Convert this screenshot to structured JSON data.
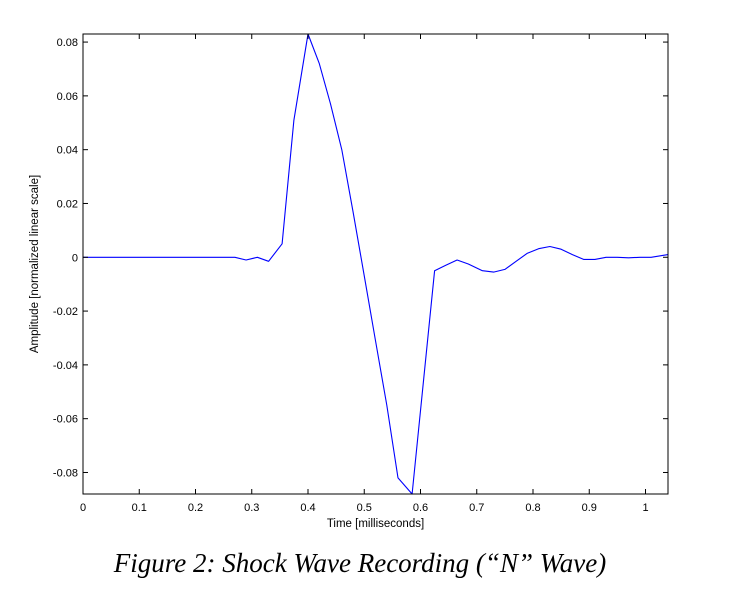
{
  "chart_data": {
    "type": "line",
    "title": "",
    "xlabel": "Time [milliseconds]",
    "ylabel": "Amplitude [normalized linear scale]",
    "xlim": [
      0,
      1.04
    ],
    "ylim": [
      -0.088,
      0.083
    ],
    "x_ticks": [
      0,
      0.1,
      0.2,
      0.3,
      0.4,
      0.5,
      0.6,
      0.7,
      0.8,
      0.9,
      1
    ],
    "x_tick_labels": [
      "0",
      "0.1",
      "0.2",
      "0.3",
      "0.4",
      "0.5",
      "0.6",
      "0.7",
      "0.8",
      "0.9",
      "1"
    ],
    "y_ticks": [
      0.08,
      0.06,
      0.04,
      0.02,
      0,
      -0.02,
      -0.04,
      -0.06,
      -0.08
    ],
    "y_tick_labels": [
      "0.08",
      "0.06",
      "0.04",
      "0.02",
      "0",
      "-0.02",
      "-0.04",
      "-0.06",
      "-0.08"
    ],
    "grid": false,
    "line_color": "#0000ff",
    "series": [
      {
        "x": [
          0,
          0.05,
          0.1,
          0.15,
          0.2,
          0.25,
          0.27,
          0.29,
          0.31,
          0.33,
          0.354,
          0.375,
          0.4,
          0.42,
          0.44,
          0.46,
          0.48,
          0.5,
          0.52,
          0.54,
          0.56,
          0.585,
          0.625,
          0.645,
          0.665,
          0.685,
          0.71,
          0.73,
          0.75,
          0.77,
          0.79,
          0.81,
          0.83,
          0.85,
          0.87,
          0.89,
          0.91,
          0.93,
          0.95,
          0.97,
          0.99,
          1.01,
          1.04
        ],
        "y": [
          0,
          0,
          0,
          0,
          0,
          0,
          0,
          -0.001,
          0,
          -0.0015,
          0.005,
          0.051,
          0.083,
          0.072,
          0.057,
          0.04,
          0.017,
          -0.007,
          -0.031,
          -0.055,
          -0.082,
          -0.088,
          -0.005,
          -0.003,
          -0.001,
          -0.0025,
          -0.005,
          -0.0055,
          -0.0045,
          -0.0015,
          0.0015,
          0.0032,
          0.004,
          0.003,
          0.001,
          -0.0008,
          -0.0008,
          0,
          0,
          -0.0002,
          0,
          0,
          0.001
        ]
      }
    ]
  },
  "caption": "Figure 2:  Shock Wave Recording (“N” Wave)"
}
